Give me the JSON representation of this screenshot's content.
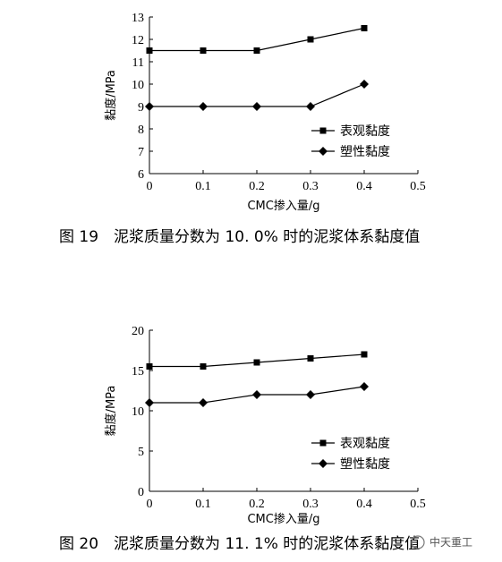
{
  "chart_data": [
    {
      "type": "line",
      "xlabel": "CMC掺入量/g",
      "ylabel": "黏度/MPa",
      "xlim": [
        0,
        0.5
      ],
      "ylim": [
        6,
        13
      ],
      "xticks": [
        "0",
        "0.1",
        "0.2",
        "0.3",
        "0.4",
        "0.5"
      ],
      "yticks": [
        "6",
        "7",
        "8",
        "9",
        "10",
        "11",
        "12",
        "13"
      ],
      "x": [
        0,
        0.1,
        0.2,
        0.3,
        0.4
      ],
      "series": [
        {
          "name": "表观黏度",
          "marker": "square",
          "values": [
            11.5,
            11.5,
            11.5,
            12,
            12.5
          ]
        },
        {
          "name": "塑性黏度",
          "marker": "diamond",
          "values": [
            9,
            9,
            9,
            9,
            10
          ]
        }
      ],
      "grid": false,
      "legend": "bottom-right",
      "caption": "图 19　泥浆质量分数为 10. 0% 时的泥浆体系黏度值"
    },
    {
      "type": "line",
      "xlabel": "CMC掺入量/g",
      "ylabel": "黏度/MPa",
      "xlim": [
        0,
        0.5
      ],
      "ylim": [
        0,
        20
      ],
      "xticks": [
        "0",
        "0.1",
        "0.2",
        "0.3",
        "0.4",
        "0.5"
      ],
      "yticks": [
        "0",
        "5",
        "10",
        "15",
        "20"
      ],
      "x": [
        0,
        0.1,
        0.2,
        0.3,
        0.4
      ],
      "series": [
        {
          "name": "表观黏度",
          "marker": "square",
          "values": [
            15.5,
            15.5,
            16,
            16.5,
            17
          ]
        },
        {
          "name": "塑性黏度",
          "marker": "diamond",
          "values": [
            11,
            11,
            12,
            12,
            13
          ]
        }
      ],
      "grid": false,
      "legend": "bottom-right",
      "caption": "图 20　泥浆质量分数为 11. 1% 时的泥浆体系黏度值"
    }
  ],
  "watermark": {
    "text": "中天重工"
  }
}
